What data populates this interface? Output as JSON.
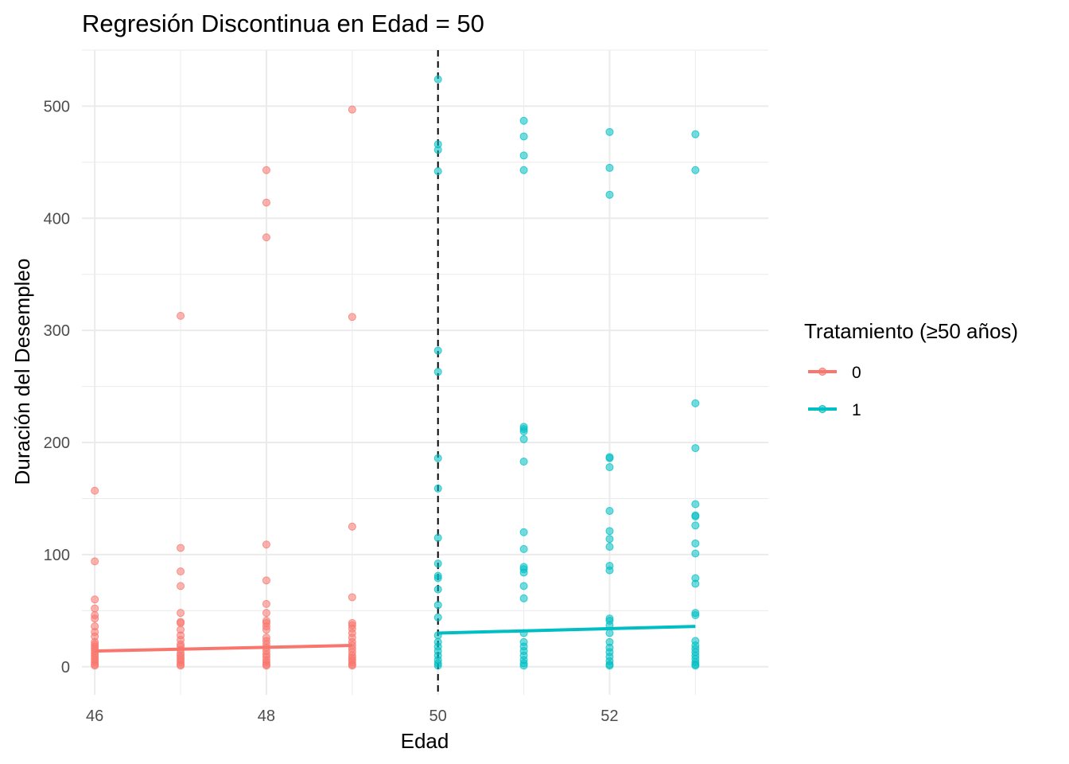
{
  "chart_data": {
    "type": "scatter",
    "title": "Regresión Discontinua en Edad = 50",
    "xlabel": "Edad",
    "ylabel": "Duración del Desempleo",
    "xlim": [
      45.85,
      53.85
    ],
    "ylim": [
      -25,
      550
    ],
    "x_ticks": [
      "46",
      "48",
      "50",
      "52"
    ],
    "x_tick_values": [
      46,
      48,
      50,
      52
    ],
    "y_ticks": [
      "0",
      "100",
      "200",
      "300",
      "400",
      "500"
    ],
    "y_tick_values": [
      0,
      100,
      200,
      300,
      400,
      500
    ],
    "grid": true,
    "cutoff": 50,
    "legend": {
      "title": "Tratamiento (≥50 años)",
      "placement": "right",
      "entries": [
        "0",
        "1"
      ]
    },
    "series": [
      {
        "name": "0",
        "color": "#F8766D",
        "points": [
          [
            46,
            157
          ],
          [
            46,
            94
          ],
          [
            46,
            60
          ],
          [
            46,
            52
          ],
          [
            46,
            46
          ],
          [
            46,
            43
          ],
          [
            46,
            36
          ],
          [
            46,
            31
          ],
          [
            46,
            27
          ],
          [
            46,
            22
          ],
          [
            46,
            20
          ],
          [
            46,
            18
          ],
          [
            46,
            16
          ],
          [
            46,
            14
          ],
          [
            46,
            12
          ],
          [
            46,
            10
          ],
          [
            46,
            8
          ],
          [
            46,
            6
          ],
          [
            46,
            4
          ],
          [
            46,
            2
          ],
          [
            46,
            1
          ],
          [
            47,
            313
          ],
          [
            47,
            106
          ],
          [
            47,
            85
          ],
          [
            47,
            72
          ],
          [
            47,
            48
          ],
          [
            47,
            40
          ],
          [
            47,
            39
          ],
          [
            47,
            33
          ],
          [
            47,
            28
          ],
          [
            47,
            24
          ],
          [
            47,
            20
          ],
          [
            47,
            18
          ],
          [
            47,
            15
          ],
          [
            47,
            12
          ],
          [
            47,
            10
          ],
          [
            47,
            8
          ],
          [
            47,
            6
          ],
          [
            47,
            4
          ],
          [
            47,
            2
          ],
          [
            47,
            1
          ],
          [
            48,
            443
          ],
          [
            48,
            414
          ],
          [
            48,
            383
          ],
          [
            48,
            109
          ],
          [
            48,
            77
          ],
          [
            48,
            56
          ],
          [
            48,
            48
          ],
          [
            48,
            41
          ],
          [
            48,
            39
          ],
          [
            48,
            36
          ],
          [
            48,
            33
          ],
          [
            48,
            26
          ],
          [
            48,
            23
          ],
          [
            48,
            20
          ],
          [
            48,
            17
          ],
          [
            48,
            14
          ],
          [
            48,
            11
          ],
          [
            48,
            9
          ],
          [
            48,
            6
          ],
          [
            48,
            4
          ],
          [
            48,
            2
          ],
          [
            48,
            1
          ],
          [
            49,
            497
          ],
          [
            49,
            312
          ],
          [
            49,
            125
          ],
          [
            49,
            62
          ],
          [
            49,
            39
          ],
          [
            49,
            37
          ],
          [
            49,
            34
          ],
          [
            49,
            30
          ],
          [
            49,
            26
          ],
          [
            49,
            22
          ],
          [
            49,
            19
          ],
          [
            49,
            16
          ],
          [
            49,
            13
          ],
          [
            49,
            10
          ],
          [
            49,
            8
          ],
          [
            49,
            6
          ],
          [
            49,
            4
          ],
          [
            49,
            2
          ],
          [
            49,
            1
          ]
        ],
        "fit": [
          [
            46,
            14
          ],
          [
            49,
            19
          ]
        ]
      },
      {
        "name": "1",
        "color": "#00BFC4",
        "points": [
          [
            50,
            524
          ],
          [
            50,
            466
          ],
          [
            50,
            461
          ],
          [
            50,
            442
          ],
          [
            50,
            282
          ],
          [
            50,
            263
          ],
          [
            50,
            186
          ],
          [
            50,
            159
          ],
          [
            50,
            115
          ],
          [
            50,
            92
          ],
          [
            50,
            81
          ],
          [
            50,
            79
          ],
          [
            50,
            69
          ],
          [
            50,
            55
          ],
          [
            50,
            44
          ],
          [
            50,
            28
          ],
          [
            50,
            22
          ],
          [
            50,
            18
          ],
          [
            50,
            14
          ],
          [
            50,
            10
          ],
          [
            50,
            6
          ],
          [
            50,
            3
          ],
          [
            50,
            1
          ],
          [
            51,
            487
          ],
          [
            51,
            473
          ],
          [
            51,
            456
          ],
          [
            51,
            443
          ],
          [
            51,
            214
          ],
          [
            51,
            212
          ],
          [
            51,
            210
          ],
          [
            51,
            203
          ],
          [
            51,
            183
          ],
          [
            51,
            120
          ],
          [
            51,
            105
          ],
          [
            51,
            89
          ],
          [
            51,
            87
          ],
          [
            51,
            84
          ],
          [
            51,
            72
          ],
          [
            51,
            61
          ],
          [
            51,
            30
          ],
          [
            51,
            22
          ],
          [
            51,
            18
          ],
          [
            51,
            14
          ],
          [
            51,
            10
          ],
          [
            51,
            6
          ],
          [
            51,
            3
          ],
          [
            51,
            1
          ],
          [
            52,
            477
          ],
          [
            52,
            445
          ],
          [
            52,
            421
          ],
          [
            52,
            187
          ],
          [
            52,
            186
          ],
          [
            52,
            178
          ],
          [
            52,
            139
          ],
          [
            52,
            121
          ],
          [
            52,
            114
          ],
          [
            52,
            107
          ],
          [
            52,
            90
          ],
          [
            52,
            86
          ],
          [
            52,
            43
          ],
          [
            52,
            41
          ],
          [
            52,
            37
          ],
          [
            52,
            30
          ],
          [
            52,
            22
          ],
          [
            52,
            17
          ],
          [
            52,
            13
          ],
          [
            52,
            9
          ],
          [
            52,
            5
          ],
          [
            52,
            2
          ],
          [
            52,
            1
          ],
          [
            53,
            475
          ],
          [
            53,
            443
          ],
          [
            53,
            235
          ],
          [
            53,
            195
          ],
          [
            53,
            145
          ],
          [
            53,
            135
          ],
          [
            53,
            134
          ],
          [
            53,
            126
          ],
          [
            53,
            110
          ],
          [
            53,
            101
          ],
          [
            53,
            79
          ],
          [
            53,
            74
          ],
          [
            53,
            48
          ],
          [
            53,
            46
          ],
          [
            53,
            23
          ],
          [
            53,
            19
          ],
          [
            53,
            16
          ],
          [
            53,
            13
          ],
          [
            53,
            10
          ],
          [
            53,
            7
          ],
          [
            53,
            4
          ],
          [
            53,
            2
          ],
          [
            53,
            1
          ]
        ],
        "fit": [
          [
            50,
            30
          ],
          [
            53,
            36
          ]
        ]
      }
    ]
  }
}
